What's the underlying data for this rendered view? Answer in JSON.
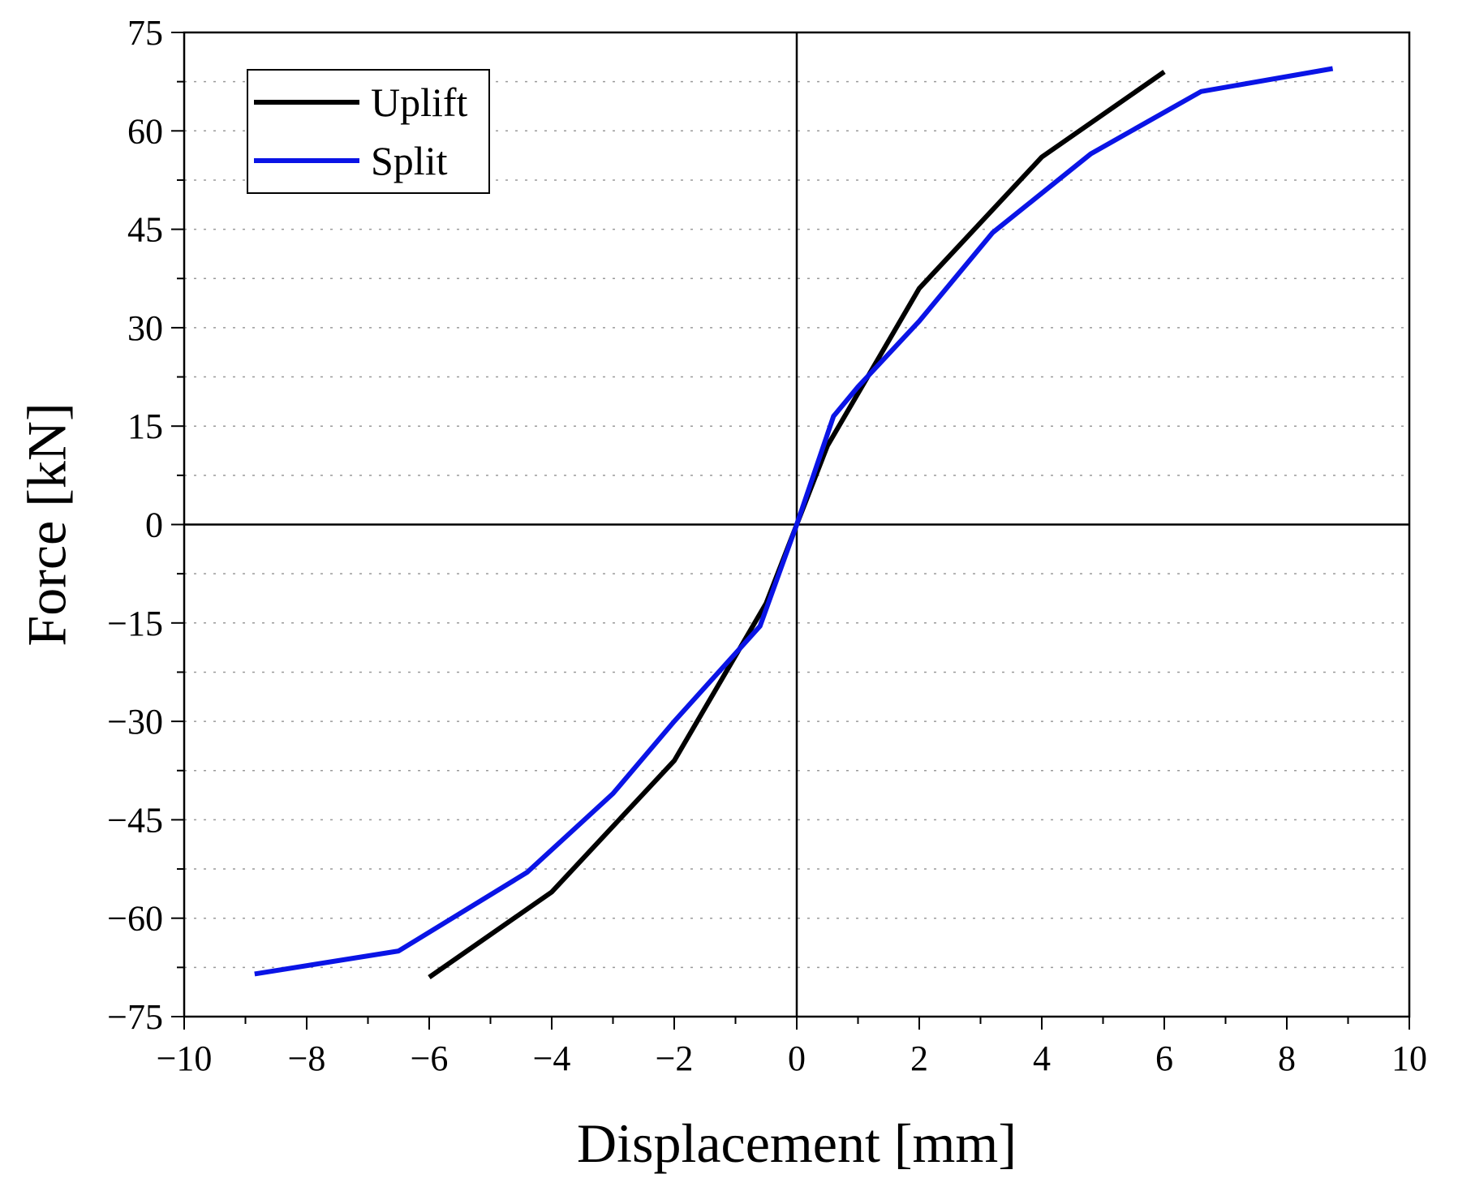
{
  "chart_data": {
    "type": "line",
    "title": "",
    "xlabel": "Displacement [mm]",
    "ylabel": "Force [kN]",
    "xlim": [
      -10,
      10
    ],
    "ylim": [
      -75,
      75
    ],
    "xticks": [
      -10,
      -8,
      -6,
      -4,
      -2,
      0,
      2,
      4,
      6,
      8,
      10
    ],
    "yticks": [
      -75,
      -60,
      -45,
      -30,
      -15,
      0,
      15,
      30,
      45,
      60,
      75
    ],
    "xtick_labels": [
      "−10",
      "−8",
      "−6",
      "−4",
      "−2",
      "0",
      "2",
      "4",
      "6",
      "8",
      "10"
    ],
    "ytick_labels": [
      "−75",
      "−60",
      "−45",
      "−30",
      "−15",
      "0",
      "15",
      "30",
      "45",
      "60",
      "75"
    ],
    "x_minor_step": 1,
    "y_minor_step": 7.5,
    "grid": "horizontal dotted at major and minor y ticks",
    "zero_lines": true,
    "legend_position": "top-left",
    "series": [
      {
        "name": "Uplift",
        "color": "#000000",
        "x": [
          -6.0,
          -4.0,
          -2.0,
          -0.5,
          0.0,
          0.5,
          2.0,
          4.0,
          6.0
        ],
        "y": [
          -69.0,
          -56.0,
          -36.0,
          -12.0,
          0.0,
          12.0,
          36.0,
          56.0,
          69.0
        ]
      },
      {
        "name": "Split",
        "color": "#0a14e6",
        "x": [
          -8.85,
          -6.5,
          -4.4,
          -3.0,
          -2.0,
          -0.6,
          0.0,
          0.6,
          1.0,
          2.0,
          3.2,
          4.8,
          6.6,
          8.75
        ],
        "y": [
          -68.5,
          -65.0,
          -53.0,
          -41.0,
          -30.0,
          -15.5,
          0.0,
          16.5,
          21.0,
          31.0,
          44.5,
          56.5,
          66.0,
          69.5
        ]
      }
    ]
  }
}
